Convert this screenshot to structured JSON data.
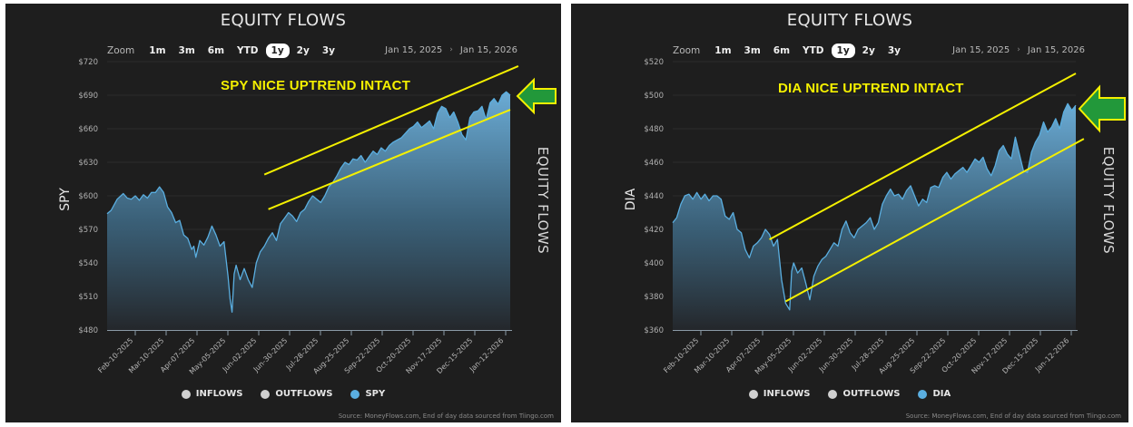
{
  "panels": [
    {
      "id": "spy",
      "title": "EQUITY FLOWS",
      "zoom": {
        "label": "Zoom",
        "buttons": [
          "1m",
          "3m",
          "6m",
          "YTD",
          "1y",
          "2y",
          "3y"
        ],
        "active": "1y"
      },
      "date_range": {
        "from": "Jan 15, 2025",
        "separator": "›",
        "to": "Jan 15, 2026"
      },
      "y_axis_title": "SPY",
      "side_label": "EQUITY FLOWS",
      "annotation": "SPY NICE UPTREND INTACT",
      "legend": [
        {
          "label": "INFLOWS",
          "color": "#d0d0d0"
        },
        {
          "label": "OUTFLOWS",
          "color": "#d0d0d0"
        },
        {
          "label": "SPY",
          "color": "#5aaee0"
        }
      ],
      "source": "Source: MoneyFlows.com, End of day data sourced from Tiingo.com"
    },
    {
      "id": "dia",
      "title": "EQUITY FLOWS",
      "zoom": {
        "label": "Zoom",
        "buttons": [
          "1m",
          "3m",
          "6m",
          "YTD",
          "1y",
          "2y",
          "3y"
        ],
        "active": "1y"
      },
      "date_range": {
        "from": "Jan 15, 2025",
        "separator": "›",
        "to": "Jan 15, 2026"
      },
      "y_axis_title": "DIA",
      "side_label": "EQUITY FLOWS",
      "annotation": "DIA NICE UPTREND INTACT",
      "legend": [
        {
          "label": "INFLOWS",
          "color": "#d0d0d0"
        },
        {
          "label": "OUTFLOWS",
          "color": "#d0d0d0"
        },
        {
          "label": "DIA",
          "color": "#5aaee0"
        }
      ],
      "source": "Source: MoneyFlows.com, End of day data sourced from Tiingo.com"
    }
  ],
  "chart_data": [
    {
      "type": "area",
      "title": "EQUITY FLOWS",
      "ylabel": "SPY",
      "xlabel": "",
      "ylim": [
        480,
        720
      ],
      "yticks": [
        "$480",
        "$510",
        "$540",
        "$570",
        "$600",
        "$630",
        "$660",
        "$690",
        "$720"
      ],
      "xticks": [
        "Feb-10-2025",
        "Mar-10-2025",
        "Apr-07-2025",
        "May-05-2025",
        "Jun-02-2025",
        "Jun-30-2025",
        "Jul-28-2025",
        "Aug-25-2025",
        "Sep-22-2025",
        "Oct-20-2025",
        "Nov-17-2025",
        "Dec-15-2025",
        "Jan-12-2026"
      ],
      "grid": true,
      "legend_position": "bottom",
      "annotation": "SPY NICE UPTREND INTACT",
      "series": [
        {
          "name": "SPY",
          "color": "#5aaee0",
          "points": [
            [
              0,
              584
            ],
            [
              0.01,
              587
            ],
            [
              0.025,
              597
            ],
            [
              0.04,
              602
            ],
            [
              0.05,
              598
            ],
            [
              0.06,
              597
            ],
            [
              0.07,
              600
            ],
            [
              0.08,
              596
            ],
            [
              0.09,
              601
            ],
            [
              0.1,
              598
            ],
            [
              0.11,
              603
            ],
            [
              0.12,
              603
            ],
            [
              0.13,
              608
            ],
            [
              0.14,
              603
            ],
            [
              0.15,
              590
            ],
            [
              0.16,
              585
            ],
            [
              0.17,
              576
            ],
            [
              0.18,
              578
            ],
            [
              0.19,
              565
            ],
            [
              0.2,
              562
            ],
            [
              0.21,
              552
            ],
            [
              0.215,
              555
            ],
            [
              0.22,
              545
            ],
            [
              0.23,
              560
            ],
            [
              0.24,
              556
            ],
            [
              0.25,
              563
            ],
            [
              0.26,
              573
            ],
            [
              0.27,
              565
            ],
            [
              0.28,
              555
            ],
            [
              0.29,
              559
            ],
            [
              0.3,
              528
            ],
            [
              0.305,
              508
            ],
            [
              0.31,
              496
            ],
            [
              0.315,
              530
            ],
            [
              0.32,
              538
            ],
            [
              0.33,
              525
            ],
            [
              0.34,
              535
            ],
            [
              0.35,
              525
            ],
            [
              0.36,
              518
            ],
            [
              0.37,
              540
            ],
            [
              0.38,
              550
            ],
            [
              0.39,
              555
            ],
            [
              0.4,
              562
            ],
            [
              0.41,
              567
            ],
            [
              0.42,
              560
            ],
            [
              0.43,
              575
            ],
            [
              0.44,
              580
            ],
            [
              0.45,
              585
            ],
            [
              0.46,
              582
            ],
            [
              0.47,
              577
            ],
            [
              0.48,
              585
            ],
            [
              0.49,
              588
            ],
            [
              0.5,
              595
            ],
            [
              0.51,
              600
            ],
            [
              0.52,
              597
            ],
            [
              0.53,
              594
            ],
            [
              0.54,
              600
            ],
            [
              0.55,
              608
            ],
            [
              0.56,
              612
            ],
            [
              0.57,
              618
            ],
            [
              0.58,
              625
            ],
            [
              0.59,
              630
            ],
            [
              0.6,
              628
            ],
            [
              0.61,
              633
            ],
            [
              0.62,
              632
            ],
            [
              0.63,
              636
            ],
            [
              0.64,
              630
            ],
            [
              0.65,
              635
            ],
            [
              0.66,
              640
            ],
            [
              0.67,
              637
            ],
            [
              0.68,
              643
            ],
            [
              0.69,
              640
            ],
            [
              0.7,
              645
            ],
            [
              0.71,
              648
            ],
            [
              0.72,
              650
            ],
            [
              0.73,
              652
            ],
            [
              0.74,
              656
            ],
            [
              0.75,
              660
            ],
            [
              0.76,
              662
            ],
            [
              0.77,
              666
            ],
            [
              0.78,
              661
            ],
            [
              0.79,
              664
            ],
            [
              0.8,
              667
            ],
            [
              0.81,
              660
            ],
            [
              0.82,
              674
            ],
            [
              0.83,
              680
            ],
            [
              0.84,
              678
            ],
            [
              0.85,
              670
            ],
            [
              0.86,
              675
            ],
            [
              0.87,
              666
            ],
            [
              0.88,
              655
            ],
            [
              0.89,
              650
            ],
            [
              0.9,
              670
            ],
            [
              0.91,
              675
            ],
            [
              0.92,
              676
            ],
            [
              0.93,
              680
            ],
            [
              0.94,
              668
            ],
            [
              0.95,
              683
            ],
            [
              0.96,
              687
            ],
            [
              0.97,
              682
            ],
            [
              0.98,
              690
            ],
            [
              0.99,
              693
            ],
            [
              1.0,
              690
            ]
          ]
        }
      ],
      "trendlines": [
        {
          "name": "upper",
          "from": [
            0.39,
            619
          ],
          "to": [
            1.02,
            716
          ]
        },
        {
          "name": "lower",
          "from": [
            0.4,
            588
          ],
          "to": [
            1.0,
            677
          ]
        }
      ]
    },
    {
      "type": "area",
      "title": "EQUITY FLOWS",
      "ylabel": "DIA",
      "xlabel": "",
      "ylim": [
        360,
        520
      ],
      "yticks": [
        "$360",
        "$380",
        "$400",
        "$420",
        "$440",
        "$460",
        "$480",
        "$500",
        "$520"
      ],
      "xticks": [
        "Feb-10-2025",
        "Mar-10-2025",
        "Apr-07-2025",
        "May-05-2025",
        "Jun-02-2025",
        "Jun-30-2025",
        "Jul-28-2025",
        "Aug-25-2025",
        "Sep-22-2025",
        "Oct-20-2025",
        "Nov-17-2025",
        "Dec-15-2025",
        "Jan-12-2026"
      ],
      "grid": true,
      "legend_position": "bottom",
      "annotation": "DIA NICE UPTREND INTACT",
      "series": [
        {
          "name": "DIA",
          "color": "#5aaee0",
          "points": [
            [
              0,
              424
            ],
            [
              0.01,
              427
            ],
            [
              0.02,
              435
            ],
            [
              0.03,
              440
            ],
            [
              0.04,
              441
            ],
            [
              0.05,
              438
            ],
            [
              0.06,
              442
            ],
            [
              0.07,
              438
            ],
            [
              0.08,
              441
            ],
            [
              0.09,
              437
            ],
            [
              0.1,
              440
            ],
            [
              0.11,
              440
            ],
            [
              0.12,
              438
            ],
            [
              0.13,
              428
            ],
            [
              0.14,
              426
            ],
            [
              0.15,
              430
            ],
            [
              0.16,
              420
            ],
            [
              0.17,
              418
            ],
            [
              0.18,
              408
            ],
            [
              0.19,
              403
            ],
            [
              0.2,
              410
            ],
            [
              0.21,
              412
            ],
            [
              0.22,
              415
            ],
            [
              0.23,
              420
            ],
            [
              0.24,
              417
            ],
            [
              0.25,
              410
            ],
            [
              0.26,
              414
            ],
            [
              0.27,
              390
            ],
            [
              0.28,
              376
            ],
            [
              0.29,
              372
            ],
            [
              0.295,
              395
            ],
            [
              0.3,
              400
            ],
            [
              0.31,
              394
            ],
            [
              0.32,
              397
            ],
            [
              0.33,
              388
            ],
            [
              0.34,
              378
            ],
            [
              0.35,
              392
            ],
            [
              0.36,
              398
            ],
            [
              0.37,
              402
            ],
            [
              0.38,
              404
            ],
            [
              0.39,
              408
            ],
            [
              0.4,
              412
            ],
            [
              0.41,
              410
            ],
            [
              0.42,
              420
            ],
            [
              0.43,
              425
            ],
            [
              0.44,
              418
            ],
            [
              0.45,
              415
            ],
            [
              0.46,
              420
            ],
            [
              0.47,
              422
            ],
            [
              0.48,
              424
            ],
            [
              0.49,
              427
            ],
            [
              0.5,
              420
            ],
            [
              0.51,
              424
            ],
            [
              0.52,
              435
            ],
            [
              0.53,
              440
            ],
            [
              0.54,
              444
            ],
            [
              0.55,
              440
            ],
            [
              0.56,
              441
            ],
            [
              0.57,
              438
            ],
            [
              0.58,
              443
            ],
            [
              0.59,
              446
            ],
            [
              0.6,
              440
            ],
            [
              0.61,
              434
            ],
            [
              0.62,
              438
            ],
            [
              0.63,
              436
            ],
            [
              0.64,
              445
            ],
            [
              0.65,
              446
            ],
            [
              0.66,
              445
            ],
            [
              0.67,
              451
            ],
            [
              0.68,
              454
            ],
            [
              0.69,
              450
            ],
            [
              0.7,
              453
            ],
            [
              0.71,
              455
            ],
            [
              0.72,
              457
            ],
            [
              0.73,
              454
            ],
            [
              0.74,
              458
            ],
            [
              0.75,
              462
            ],
            [
              0.76,
              460
            ],
            [
              0.77,
              463
            ],
            [
              0.78,
              456
            ],
            [
              0.79,
              452
            ],
            [
              0.8,
              458
            ],
            [
              0.81,
              467
            ],
            [
              0.82,
              470
            ],
            [
              0.83,
              465
            ],
            [
              0.84,
              462
            ],
            [
              0.85,
              475
            ],
            [
              0.86,
              465
            ],
            [
              0.87,
              455
            ],
            [
              0.88,
              454
            ],
            [
              0.89,
              466
            ],
            [
              0.9,
              472
            ],
            [
              0.91,
              476
            ],
            [
              0.92,
              484
            ],
            [
              0.93,
              478
            ],
            [
              0.94,
              481
            ],
            [
              0.95,
              486
            ],
            [
              0.96,
              480
            ],
            [
              0.97,
              490
            ],
            [
              0.98,
              495
            ],
            [
              0.99,
              491
            ],
            [
              1.0,
              494
            ]
          ]
        }
      ],
      "trendlines": [
        {
          "name": "upper",
          "from": [
            0.24,
            414
          ],
          "to": [
            1.0,
            513
          ]
        },
        {
          "name": "lower",
          "from": [
            0.28,
            377
          ],
          "to": [
            1.02,
            474
          ]
        }
      ]
    }
  ]
}
